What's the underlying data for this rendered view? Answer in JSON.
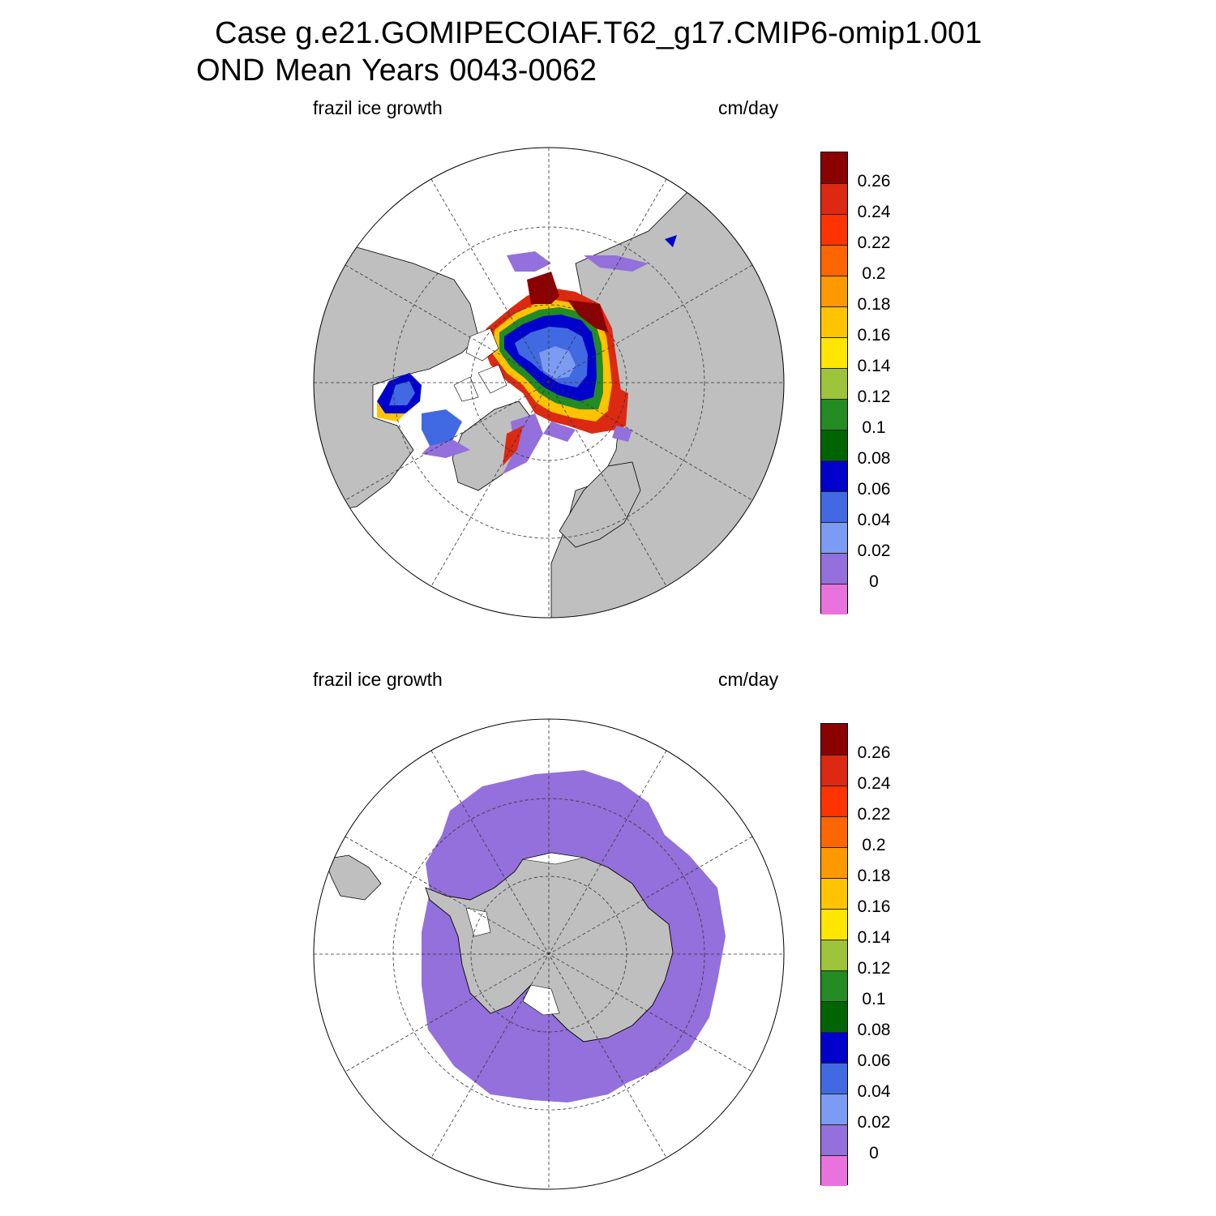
{
  "header": {
    "line1": "Case g.e21.GOMIPECOIAF.T62_g17.CMIP6-omip1.001",
    "line2": "OND Mean   Years 0043-0062"
  },
  "panels": [
    {
      "id": "north",
      "left_label": "frazil ice growth",
      "right_label": "cm/day"
    },
    {
      "id": "south",
      "left_label": "frazil ice growth",
      "right_label": "cm/day"
    }
  ],
  "colorbar": {
    "levels": [
      "0.26",
      "0.24",
      "0.22",
      "0.2",
      "0.18",
      "0.16",
      "0.14",
      "0.12",
      "0.1",
      "0.08",
      "0.06",
      "0.04",
      "0.02",
      "0"
    ],
    "colors": [
      "#8b0000",
      "#dc2912",
      "#ff3300",
      "#ff6600",
      "#ff9900",
      "#ffc300",
      "#ffe600",
      "#9cc33a",
      "#228b22",
      "#006400",
      "#0000cd",
      "#4169e1",
      "#7b9cf2",
      "#9370db",
      "#e873dc"
    ]
  },
  "palette": {
    "land": "#bfbfbf",
    "ocean": "#ffffff",
    "coast": "#000000"
  }
}
